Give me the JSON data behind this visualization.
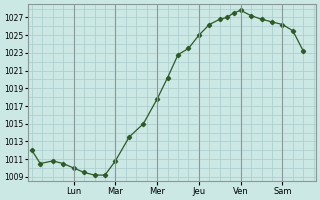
{
  "background_color": "#cce8e4",
  "grid_color": "#aacccc",
  "line_color": "#2d5a27",
  "ylim": [
    1008.5,
    1028.5
  ],
  "yticks": [
    1009,
    1011,
    1013,
    1015,
    1017,
    1019,
    1021,
    1023,
    1025,
    1027
  ],
  "x_ticks": [
    1,
    2,
    3,
    4,
    5,
    6
  ],
  "x_labels": [
    "Lun",
    "Mar",
    "Mer",
    "Jeu",
    "Ven",
    "Sam"
  ],
  "data_x": [
    0.0,
    0.2,
    0.5,
    0.75,
    1.0,
    1.25,
    1.5,
    1.75,
    2.0,
    2.33,
    2.67,
    3.0,
    3.25,
    3.5,
    3.75,
    4.0,
    4.25,
    4.5,
    4.67,
    4.83,
    5.0,
    5.25,
    5.5,
    5.75,
    6.0,
    6.25,
    6.5
  ],
  "data_y": [
    1012.0,
    1010.5,
    1010.8,
    1010.5,
    1010.0,
    1009.5,
    1009.2,
    1009.2,
    1010.8,
    1013.5,
    1015.0,
    1017.8,
    1020.2,
    1022.8,
    1023.5,
    1025.0,
    1026.2,
    1026.8,
    1027.0,
    1027.5,
    1027.8,
    1027.2,
    1026.8,
    1026.5,
    1026.2,
    1025.5,
    1023.2
  ]
}
